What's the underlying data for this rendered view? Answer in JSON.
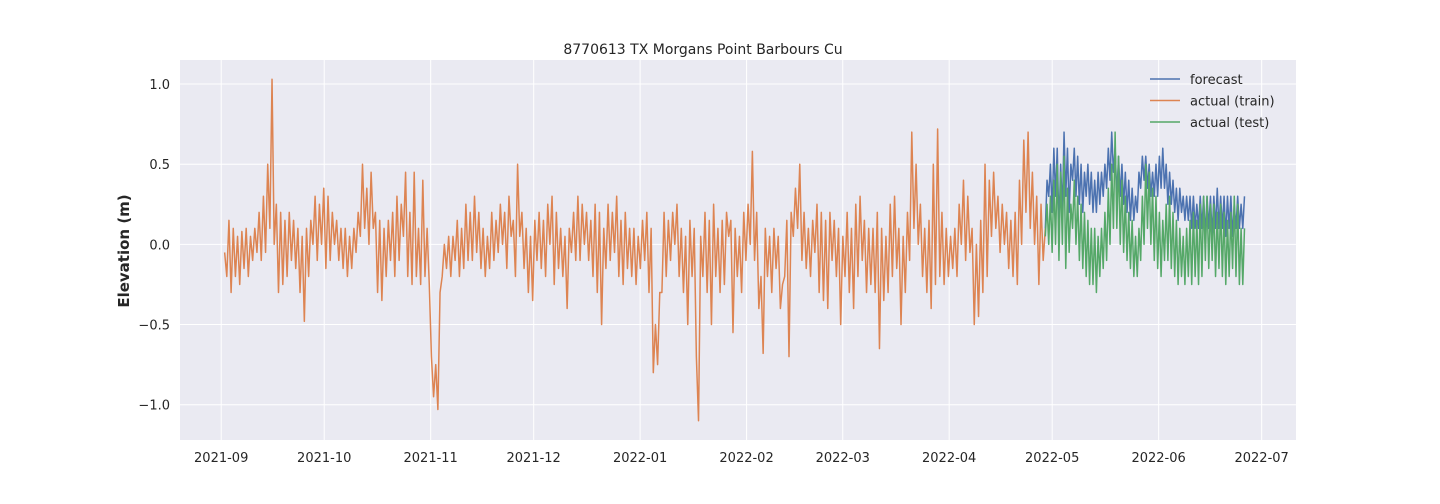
{
  "chart_data": {
    "type": "line",
    "title": "8770613 TX Morgans Point Barbours Cu",
    "xlabel": "",
    "ylabel": "Elevation (m)",
    "x_ticks": [
      "2021-09",
      "2021-10",
      "2021-11",
      "2021-12",
      "2022-01",
      "2022-02",
      "2022-03",
      "2022-04",
      "2022-05",
      "2022-06",
      "2022-07"
    ],
    "y_ticks": [
      "−1.0",
      "−0.5",
      "0.0",
      "0.5",
      "1.0"
    ],
    "x_range": [
      "2021-08-20",
      "2022-07-11"
    ],
    "ylim": [
      -1.22,
      1.15
    ],
    "grid": true,
    "legend_position": "top-right",
    "background_color": "#eaeaf2",
    "grid_color": "#ffffff",
    "sampling": "daily, values shown at 2 points per day",
    "series": [
      {
        "name": "forecast",
        "color": "#4c72b0",
        "start": "2022-04-29",
        "end": "2022-06-26",
        "values": [
          0.1,
          0.4,
          0.3,
          0.5,
          0.2,
          0.6,
          0.3,
          0.6,
          0.1,
          0.5,
          0.2,
          0.7,
          0.3,
          0.6,
          0.2,
          0.5,
          0.4,
          0.6,
          0.3,
          0.55,
          0.25,
          0.5,
          0.2,
          0.45,
          0.3,
          0.5,
          0.25,
          0.45,
          0.2,
          0.4,
          0.2,
          0.45,
          0.25,
          0.45,
          0.3,
          0.5,
          0.35,
          0.6,
          0.4,
          0.7,
          0.45,
          0.6,
          0.3,
          0.55,
          0.3,
          0.5,
          0.25,
          0.45,
          0.2,
          0.4,
          0.15,
          0.35,
          0.15,
          0.3,
          0.2,
          0.45,
          0.35,
          0.55,
          0.4,
          0.55,
          0.35,
          0.5,
          0.3,
          0.45,
          0.3,
          0.5,
          0.3,
          0.55,
          0.35,
          0.6,
          0.35,
          0.5,
          0.25,
          0.45,
          0.25,
          0.4,
          0.2,
          0.35,
          0.15,
          0.35,
          0.2,
          0.3,
          0.15,
          0.3,
          0.15,
          0.3,
          0.1,
          0.3,
          0.1,
          0.25,
          0.1,
          0.3,
          0.1,
          0.3,
          0.05,
          0.3,
          0.1,
          0.3,
          0.05,
          0.3,
          0.1,
          0.35,
          0.1,
          0.3,
          0.1,
          0.3,
          0.05,
          0.3,
          0.1,
          0.3,
          0.05,
          0.25,
          0.1,
          0.3,
          0.1,
          0.25,
          0.1,
          0.3
        ]
      },
      {
        "name": "actual (train)",
        "color": "#dd8452",
        "start": "2021-09-02",
        "end": "2022-04-29",
        "values": [
          -0.05,
          -0.2,
          0.15,
          -0.3,
          0.1,
          -0.2,
          0.05,
          -0.25,
          0.08,
          -0.15,
          0.1,
          -0.2,
          0.05,
          -0.1,
          0.1,
          -0.05,
          0.2,
          -0.1,
          0.3,
          -0.05,
          0.5,
          0.1,
          1.03,
          0.0,
          0.25,
          -0.3,
          0.2,
          -0.25,
          0.15,
          -0.2,
          0.2,
          -0.1,
          0.15,
          -0.15,
          0.1,
          -0.3,
          0.05,
          -0.48,
          0.1,
          -0.2,
          0.15,
          0.0,
          0.3,
          -0.1,
          0.25,
          0.0,
          0.35,
          -0.15,
          0.3,
          -0.1,
          0.2,
          0.0,
          0.15,
          -0.1,
          0.1,
          -0.15,
          0.1,
          -0.2,
          0.05,
          -0.15,
          0.1,
          -0.05,
          0.2,
          0.05,
          0.5,
          0.1,
          0.35,
          0.0,
          0.45,
          0.1,
          0.2,
          -0.3,
          0.15,
          -0.35,
          0.1,
          -0.2,
          0.15,
          -0.1,
          0.2,
          -0.2,
          0.3,
          -0.1,
          0.25,
          0.05,
          0.45,
          -0.2,
          0.2,
          -0.25,
          0.45,
          -0.2,
          0.1,
          -0.25,
          0.4,
          -0.2,
          0.1,
          -0.25,
          -0.7,
          -0.95,
          -0.75,
          -1.03,
          -0.3,
          -0.2,
          0.0,
          -0.15,
          0.05,
          -0.2,
          0.05,
          -0.1,
          0.15,
          -0.2,
          0.1,
          -0.15,
          0.25,
          -0.1,
          0.2,
          -0.1,
          0.3,
          -0.05,
          0.2,
          -0.15,
          0.1,
          -0.2,
          0.05,
          -0.15,
          0.2,
          -0.1,
          0.15,
          -0.05,
          0.25,
          0.0,
          0.2,
          -0.15,
          0.3,
          0.05,
          0.15,
          -0.2,
          0.5,
          0.05,
          0.2,
          -0.15,
          0.1,
          -0.3,
          0.05,
          -0.35,
          0.15,
          -0.1,
          0.2,
          -0.15,
          0.15,
          -0.2,
          0.25,
          0.0,
          0.3,
          -0.25,
          0.2,
          -0.15,
          0.1,
          -0.2,
          0.05,
          -0.4,
          0.1,
          -0.05,
          0.2,
          -0.1,
          0.3,
          -0.1,
          0.25,
          0.0,
          0.2,
          -0.1,
          0.15,
          -0.2,
          0.25,
          -0.3,
          0.2,
          -0.5,
          0.1,
          -0.15,
          0.25,
          -0.1,
          0.2,
          -0.05,
          0.3,
          -0.2,
          0.15,
          -0.25,
          0.2,
          -0.15,
          0.1,
          -0.2,
          0.1,
          -0.25,
          0.05,
          -0.15,
          0.15,
          -0.1,
          0.2,
          -0.3,
          0.1,
          -0.8,
          -0.5,
          -0.75,
          -0.3,
          -0.3,
          0.2,
          -0.2,
          0.15,
          -0.1,
          0.2,
          0.0,
          0.25,
          -0.2,
          0.1,
          -0.3,
          0.05,
          -0.5,
          0.15,
          -0.2,
          0.1,
          -0.7,
          -1.1,
          0.05,
          -0.2,
          0.2,
          -0.3,
          0.15,
          -0.5,
          0.25,
          -0.2,
          0.1,
          -0.3,
          0.15,
          -0.25,
          0.2,
          0.05,
          0.15,
          -0.55,
          0.1,
          -0.2,
          0.05,
          -0.3,
          0.2,
          -0.1,
          0.25,
          0.0,
          0.58,
          -0.1,
          0.2,
          -0.4,
          -0.2,
          -0.68,
          0.1,
          -0.2,
          0.05,
          -0.3,
          0.1,
          -0.15,
          0.05,
          -0.4,
          -0.25,
          -0.2,
          0.15,
          -0.7,
          0.2,
          0.05,
          0.35,
          0.1,
          0.5,
          -0.1,
          0.2,
          -0.15,
          0.1,
          -0.2,
          0.15,
          -0.05,
          0.25,
          -0.3,
          0.2,
          -0.35,
          0.15,
          -0.4,
          0.2,
          -0.1,
          0.15,
          -0.2,
          0.1,
          -0.5,
          0.05,
          -0.2,
          0.2,
          -0.3,
          0.1,
          -0.4,
          0.25,
          -0.2,
          0.3,
          -0.1,
          0.15,
          -0.3,
          0.1,
          -0.25,
          0.1,
          -0.3,
          0.2,
          -0.65,
          0.1,
          -0.35,
          0.05,
          -0.3,
          0.25,
          -0.2,
          0.3,
          -0.15,
          0.1,
          -0.5,
          0.05,
          -0.3,
          0.2,
          -0.1,
          0.7,
          0.1,
          0.5,
          0.0,
          0.25,
          -0.2,
          0.1,
          -0.3,
          0.15,
          -0.4,
          0.5,
          -0.25,
          0.72,
          -0.2,
          0.2,
          -0.25,
          0.1,
          -0.2,
          0.05,
          -0.15,
          0.1,
          -0.2,
          0.25,
          0.0,
          0.4,
          -0.1,
          0.3,
          -0.05,
          0.1,
          -0.5,
          0.0,
          -0.45,
          0.15,
          -0.3,
          0.5,
          -0.2,
          0.4,
          0.05,
          0.45,
          0.1,
          0.3,
          -0.05,
          0.25,
          0.0,
          0.2,
          -0.15,
          0.15,
          -0.2,
          0.2,
          -0.25,
          0.4,
          0.0,
          0.65,
          0.2,
          0.7,
          0.1,
          0.45,
          0.0,
          0.3,
          -0.25,
          0.25,
          -0.1,
          0.1
        ]
      },
      {
        "name": "actual (test)",
        "color": "#55a868",
        "start": "2022-04-29",
        "end": "2022-06-26",
        "values": [
          0.05,
          0.25,
          0.0,
          0.3,
          -0.05,
          0.4,
          0.0,
          0.5,
          -0.1,
          0.45,
          0.0,
          0.55,
          -0.15,
          0.35,
          -0.05,
          0.25,
          0.1,
          0.4,
          0.0,
          0.3,
          -0.1,
          0.25,
          -0.15,
          0.2,
          -0.2,
          0.15,
          -0.25,
          0.1,
          -0.25,
          0.1,
          -0.3,
          0.05,
          -0.2,
          0.1,
          -0.15,
          0.2,
          -0.1,
          0.35,
          0.0,
          0.5,
          0.1,
          0.7,
          0.1,
          0.55,
          0.0,
          0.4,
          -0.05,
          0.3,
          -0.1,
          0.2,
          -0.15,
          0.15,
          -0.2,
          0.05,
          -0.2,
          0.1,
          -0.1,
          0.3,
          0.0,
          0.5,
          0.1,
          0.45,
          0.0,
          0.35,
          -0.1,
          0.3,
          -0.15,
          0.2,
          -0.2,
          0.15,
          -0.1,
          0.25,
          -0.1,
          0.3,
          -0.15,
          0.2,
          -0.2,
          0.15,
          -0.25,
          0.1,
          -0.2,
          0.05,
          -0.25,
          0.1,
          -0.2,
          0.15,
          -0.25,
          0.2,
          -0.2,
          0.15,
          -0.25,
          0.25,
          -0.2,
          0.3,
          -0.1,
          0.3,
          -0.15,
          0.25,
          -0.1,
          0.25,
          -0.2,
          0.2,
          -0.15,
          0.25,
          -0.2,
          0.2,
          -0.25,
          0.15,
          -0.2,
          0.2,
          -0.15,
          0.3,
          -0.2,
          0.25,
          -0.25,
          0.1,
          -0.25,
          0.1
        ]
      }
    ]
  }
}
